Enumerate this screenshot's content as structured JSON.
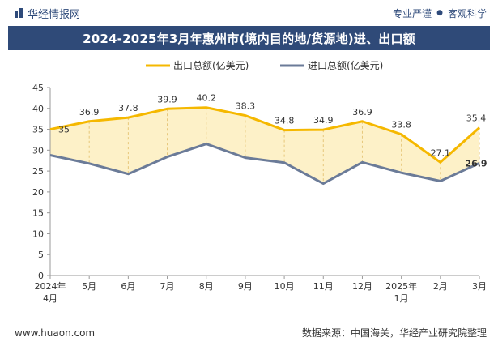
{
  "header": {
    "brand": "华经情报网",
    "tag1": "专业严谨",
    "tag2": "客观科学"
  },
  "title": "2024-2025年3月年惠州市(境内目的地/货源地)进、出口额",
  "footer": {
    "website": "www.huaon.com",
    "source": "数据来源：中国海关，华经产业研究院整理"
  },
  "colors": {
    "export": "#f5b800",
    "import": "#6b7b98",
    "fill": "#fdf1c8",
    "title_bg": "#2f4a78"
  },
  "chart_data": {
    "type": "line",
    "categories": [
      [
        "2024年",
        "4月"
      ],
      [
        "5月"
      ],
      [
        "6月"
      ],
      [
        "7月"
      ],
      [
        "8月"
      ],
      [
        "9月"
      ],
      [
        "10月"
      ],
      [
        "11月"
      ],
      [
        "12月"
      ],
      [
        "2025年",
        "1月"
      ],
      [
        "2月"
      ],
      [
        "3月"
      ]
    ],
    "series": [
      {
        "name": "出口总额(亿美元)",
        "values": [
          35,
          36.9,
          37.8,
          39.9,
          40.2,
          38.3,
          34.8,
          34.9,
          36.9,
          33.8,
          27.1,
          35.4
        ],
        "labeled": true
      },
      {
        "name": "进口总额(亿美元)",
        "values": [
          28.8,
          26.8,
          24.3,
          28.4,
          31.5,
          28.2,
          27.0,
          22.0,
          27.1,
          24.6,
          22.6,
          26.9
        ],
        "labeled_last": true
      }
    ],
    "ylim": [
      0,
      45
    ],
    "yticks": [
      0,
      5,
      10,
      15,
      20,
      25,
      30,
      35,
      40,
      45
    ],
    "legend_position": "top",
    "grid": false
  }
}
